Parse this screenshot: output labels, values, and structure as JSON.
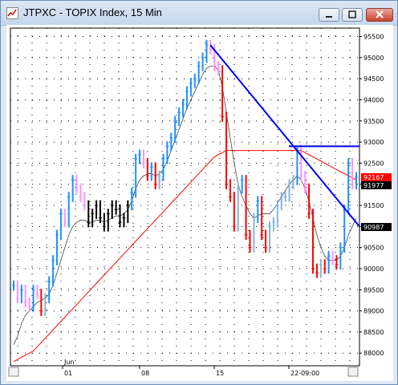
{
  "window": {
    "title": "JTPXC - TOPIX Index, 15 Min"
  },
  "colors": {
    "title_bg": "#c9d9ee",
    "trendline": "#0000ff",
    "ma_fast": "#000000",
    "ma_slow": "#ff0000",
    "price_up_strong": "#1e90ff",
    "price_up_weak": "#87b4d8",
    "price_down_strong": "#ff0000",
    "price_down_weak": "#ff90ff",
    "price_neutral": "#000000",
    "label_red": "#ff0000",
    "label_black": "#000000"
  },
  "chart_data": {
    "type": "line",
    "symbol": "JTPXC",
    "timeframe": "15 Min",
    "ylim": [
      87700,
      95700
    ],
    "y_ticks": [
      95500,
      95000,
      94500,
      94000,
      93500,
      93000,
      92500,
      92000,
      91500,
      91000,
      90500,
      90000,
      89500,
      89000,
      88500,
      88000
    ],
    "y_tick_labels": [
      "95500",
      "95000",
      "94500",
      "94000",
      "93500",
      "93000",
      "92500",
      "92000",
      "91500",
      "91000",
      "90500",
      "90000",
      "89500",
      "89000",
      "88500",
      "88000"
    ],
    "x_tick_labels": [
      "01",
      "08",
      "15",
      "22-09:00"
    ],
    "x_sublabel": "Jun",
    "price_labels": [
      {
        "text": "92167",
        "value": 92167,
        "color": "label_red"
      },
      {
        "text": "91977",
        "value": 91977,
        "color": "label_black"
      },
      {
        "text": "90987",
        "value": 90987,
        "color": "label_black"
      }
    ],
    "price": [
      89600,
      89300,
      89500,
      89200,
      89100,
      89500,
      89400,
      89000,
      89300,
      89700,
      90200,
      90800,
      91300,
      91100,
      91700,
      92100,
      91900,
      91700,
      91500,
      91100,
      91300,
      91500,
      91200,
      91000,
      91300,
      91500,
      91400,
      91100,
      91200,
      91500,
      91800,
      92600,
      92700,
      92500,
      92200,
      92400,
      92000,
      92200,
      92600,
      92900,
      93100,
      93500,
      93700,
      93900,
      94200,
      94400,
      94500,
      94800,
      95000,
      95300,
      95200,
      94800,
      94700,
      93600,
      92000,
      91700,
      91000,
      91900,
      92100,
      90800,
      90500,
      91200,
      91600,
      90800,
      90500,
      91000,
      91100,
      91500,
      91700,
      91700,
      92000,
      92100,
      92800,
      92200,
      91900,
      91300,
      90000,
      89900,
      90100,
      90000,
      90300,
      90200,
      90100,
      90500,
      91400,
      92500,
      92000,
      92167
    ],
    "ma_fast": [
      88200,
      88400,
      88700,
      88900,
      89000,
      89100,
      89200,
      89250,
      89300,
      89400,
      89600,
      89900,
      90200,
      90500,
      90800,
      91000,
      91100,
      91150,
      91150,
      91100,
      91100,
      91150,
      91150,
      91100,
      91150,
      91200,
      91250,
      91250,
      91300,
      91400,
      91600,
      91900,
      92100,
      92200,
      92250,
      92250,
      92200,
      92250,
      92350,
      92550,
      92800,
      93050,
      93300,
      93550,
      93800,
      94000,
      94200,
      94400,
      94600,
      94750,
      94800,
      94800,
      94700,
      94300,
      93700,
      93100,
      92500,
      92000,
      91700,
      91500,
      91300,
      91200,
      91250,
      91300,
      91300,
      91300,
      91400,
      91550,
      91700,
      91850,
      92000,
      92100,
      92200,
      92100,
      91900,
      91600,
      91200,
      90800,
      90500,
      90300,
      90200,
      90200,
      90200,
      90300,
      90500,
      90800,
      91000,
      91200
    ],
    "ma_slow": [
      87800,
      87850,
      87900,
      87950,
      88000,
      88050,
      88150,
      88250,
      88350,
      88450,
      88550,
      88650,
      88750,
      88850,
      88950,
      89050,
      89150,
      89250,
      89350,
      89450,
      89550,
      89650,
      89750,
      89850,
      89950,
      90050,
      90150,
      90250,
      90350,
      90450,
      90550,
      90650,
      90750,
      90850,
      90950,
      91050,
      91150,
      91250,
      91350,
      91450,
      91550,
      91650,
      91750,
      91850,
      91950,
      92050,
      92150,
      92250,
      92350,
      92450,
      92550,
      92650,
      92700,
      92750,
      92800,
      92800,
      92800,
      92800,
      92800,
      92800,
      92800,
      92800,
      92800,
      92800,
      92800,
      92800,
      92800,
      92800,
      92800,
      92800,
      92800,
      92800,
      92800,
      92800,
      92750,
      92700,
      92650,
      92600,
      92550,
      92500,
      92450,
      92400,
      92350,
      92300,
      92250,
      92200,
      92150,
      92100
    ],
    "trendlines": [
      {
        "x1": 254,
        "y1": 95300,
        "x2": 440,
        "y2": 91000
      },
      {
        "x1": 352,
        "y1": 92900,
        "x2": 440,
        "y2": 92900
      }
    ]
  }
}
